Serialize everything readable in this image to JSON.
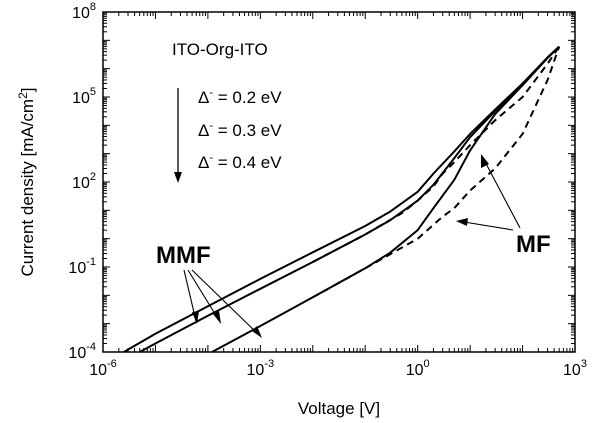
{
  "chart_data": {
    "type": "line",
    "title": "",
    "xlabel": "Voltage [V]",
    "ylabel": "Current density [mA/cm",
    "ylabel_sup": "2",
    "ylabel_end": "]",
    "xscale": "log",
    "yscale": "log",
    "xlim": [
      1e-06,
      1000
    ],
    "ylim": [
      0.0001,
      100000000
    ],
    "grid": false,
    "x_ticks": [
      {
        "value": 1e-06,
        "base": "10",
        "exp": "-6"
      },
      {
        "value": 0.001,
        "base": "10",
        "exp": "-3"
      },
      {
        "value": 1,
        "base": "10",
        "exp": "0"
      },
      {
        "value": 1000,
        "base": "10",
        "exp": "3"
      }
    ],
    "y_ticks": [
      {
        "value": 0.0001,
        "base": "10",
        "exp": "-4"
      },
      {
        "value": 0.1,
        "base": "10",
        "exp": "-1"
      },
      {
        "value": 100,
        "base": "10",
        "exp": "2"
      },
      {
        "value": 100000,
        "base": "10",
        "exp": "5"
      },
      {
        "value": 100000000,
        "base": "10",
        "exp": "8"
      }
    ],
    "legend": {
      "header": "ITO-Org-ITO",
      "entries": [
        {
          "delta": "Δ",
          "sup": "-",
          "text": " = 0.2 eV"
        },
        {
          "delta": "Δ",
          "sup": "-",
          "text": " = 0.3 eV"
        },
        {
          "delta": "Δ",
          "sup": "-",
          "text": " = 0.4 eV"
        }
      ]
    },
    "annotations": [
      {
        "text": "MMF",
        "target": "solid curves"
      },
      {
        "text": "MF",
        "target": "dashed curves"
      }
    ],
    "series": [
      {
        "group": "MMF",
        "style": "solid",
        "x": [
          2.5e-06,
          1e-05,
          0.0001,
          0.001,
          0.01,
          0.1,
          0.3,
          1,
          2,
          5,
          10,
          30,
          100,
          300,
          500
        ],
        "y": [
          0.0001,
          0.00044,
          0.0041,
          0.038,
          0.33,
          2.8,
          9,
          45,
          200,
          1200,
          5000,
          36000,
          300000,
          2500000,
          6000000
        ]
      },
      {
        "group": "MMF",
        "style": "solid",
        "x": [
          5e-06,
          1e-05,
          0.0001,
          0.001,
          0.01,
          0.1,
          0.3,
          1,
          2,
          5,
          10,
          30,
          100,
          300,
          500
        ],
        "y": [
          0.0001,
          0.0002,
          0.0019,
          0.017,
          0.15,
          1.4,
          4.5,
          22,
          80,
          700,
          3800,
          32000,
          280000,
          2500000,
          6000000
        ]
      },
      {
        "group": "MMF",
        "style": "solid",
        "x": [
          0.00012,
          0.001,
          0.01,
          0.1,
          0.3,
          1,
          2,
          5,
          10,
          30,
          100,
          300,
          500
        ],
        "y": [
          0.0001,
          0.00083,
          0.0085,
          0.09,
          0.32,
          2,
          12,
          120,
          1300,
          25000,
          260000,
          2400000,
          6000000
        ]
      },
      {
        "group": "MF",
        "style": "dashed",
        "x": [
          0.01,
          0.1,
          0.5,
          1,
          2,
          3,
          5,
          10,
          30,
          100,
          300,
          500
        ],
        "y": [
          0.15,
          1.4,
          8,
          22,
          70,
          200,
          500,
          2000,
          15000,
          100000,
          1500000,
          6000000
        ]
      },
      {
        "group": "MF",
        "style": "dashed",
        "x": [
          0.01,
          0.1,
          1,
          3,
          5,
          10,
          30,
          100,
          300,
          500
        ],
        "y": [
          0.0085,
          0.09,
          1,
          6,
          12,
          50,
          300,
          5000,
          400000,
          6000000
        ]
      }
    ]
  }
}
